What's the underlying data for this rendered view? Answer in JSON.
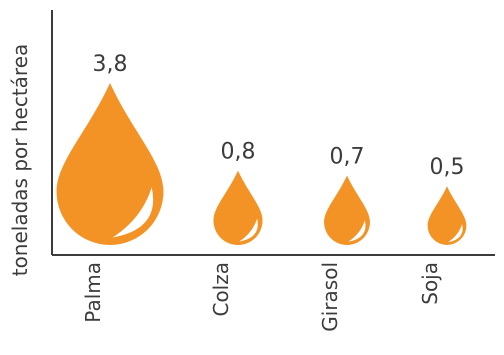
{
  "chart_data": {
    "type": "bar",
    "ylabel": "toneladas por hectárea",
    "categories": [
      "Palma",
      "Colza",
      "Girasol",
      "Soja"
    ],
    "values": [
      3.8,
      0.8,
      0.7,
      0.5
    ],
    "value_labels": [
      "3,8",
      "0,8",
      "0,7",
      "0,5"
    ],
    "colors": {
      "drop": "#f39325",
      "highlight": "#ffffff",
      "text": "#3c3c3c",
      "axis": "#3c3c3c"
    }
  }
}
